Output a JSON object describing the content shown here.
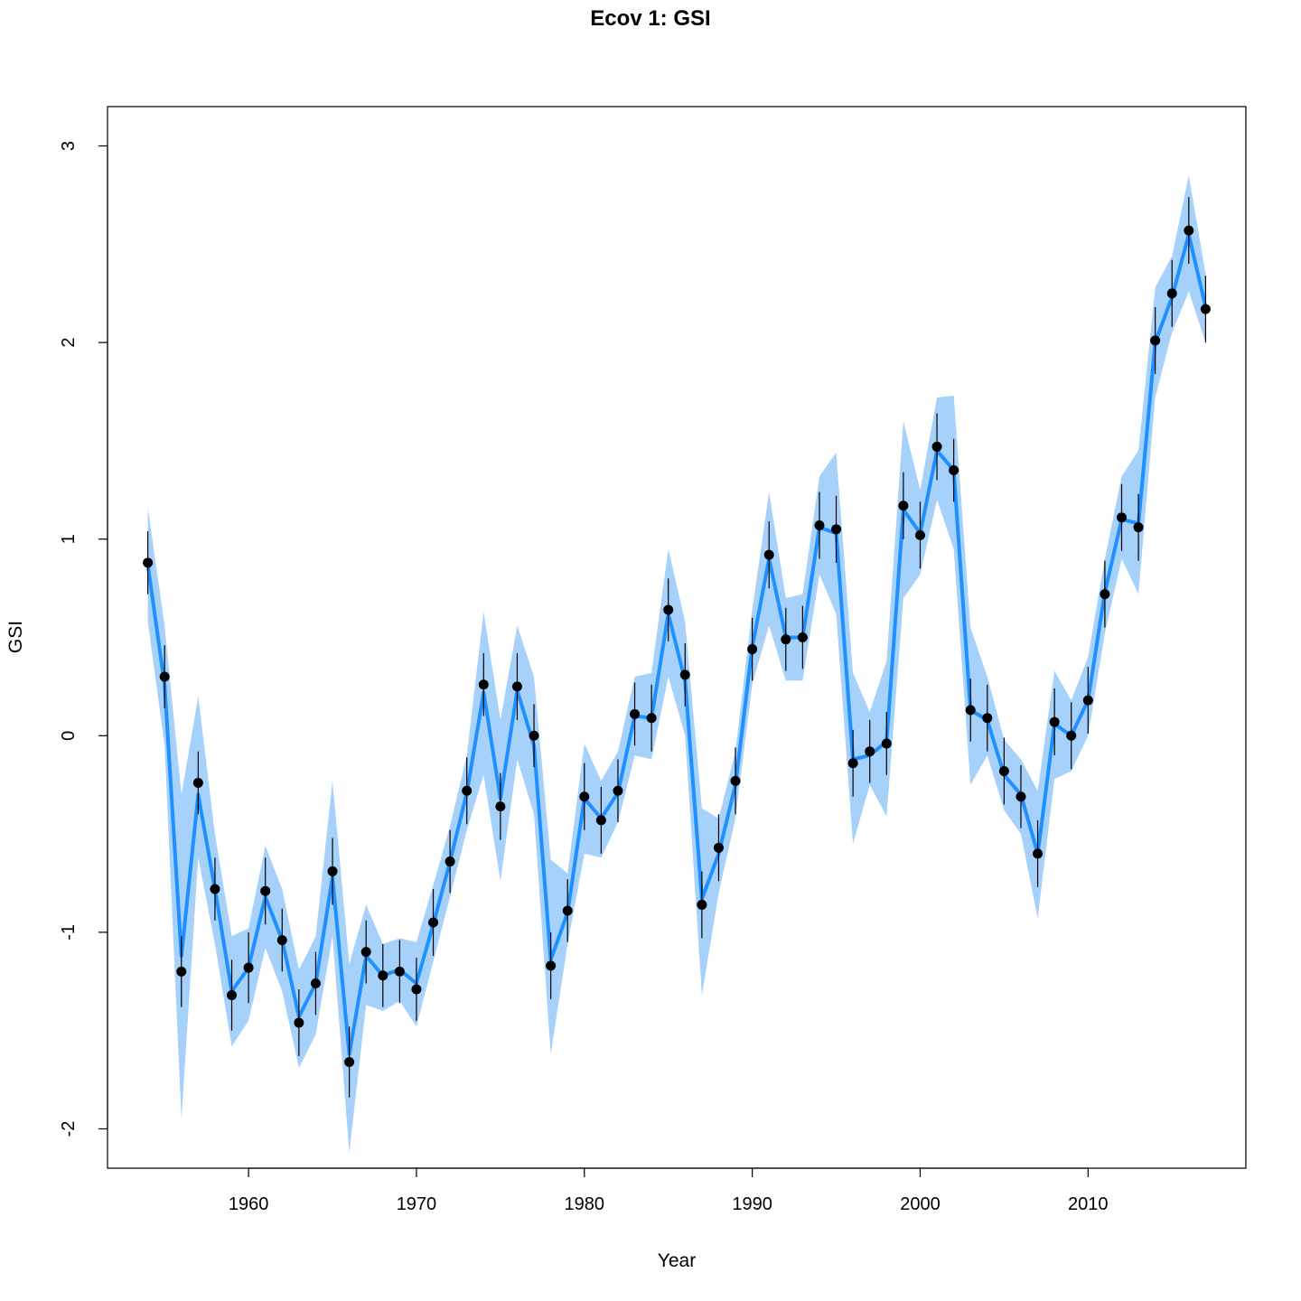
{
  "chart_data": {
    "type": "line",
    "title": "Ecov 1: GSI",
    "xlabel": "Year",
    "ylabel": "GSI",
    "xlim": [
      1951.6,
      2019.4
    ],
    "ylim": [
      -2.2,
      3.2
    ],
    "x_ticks": [
      1960,
      1970,
      1980,
      1990,
      2000,
      2010
    ],
    "x_tick_labels": [
      "1960",
      "1970",
      "1980",
      "1990",
      "2000",
      "2010"
    ],
    "y_ticks": [
      -2,
      -1,
      0,
      1,
      2,
      3
    ],
    "y_tick_labels": [
      "-2",
      "-1",
      "0",
      "1",
      "2",
      "3"
    ],
    "grid": false,
    "legend": "none",
    "colors": {
      "line": "#1E90FF",
      "band": "#A6D1FA",
      "points": "#000000",
      "error_bars": "#000000",
      "frame": "#000000"
    },
    "series": [
      {
        "type": "line",
        "x": [
          1954,
          1955,
          1956,
          1957,
          1958,
          1959,
          1960,
          1961,
          1962,
          1963,
          1964,
          1965,
          1966,
          1967,
          1968,
          1969,
          1970,
          1971,
          1972,
          1973,
          1974,
          1975,
          1976,
          1977,
          1978,
          1979,
          1980,
          1981,
          1982,
          1983,
          1984,
          1985,
          1986,
          1987,
          1988,
          1989,
          1990,
          1991,
          1992,
          1993,
          1994,
          1995,
          1996,
          1997,
          1998,
          1999,
          2000,
          2001,
          2002,
          2003,
          2004,
          2005,
          2006,
          2007,
          2008,
          2009,
          2010,
          2011,
          2012,
          2013,
          2014,
          2015,
          2016,
          2017
        ],
        "y": [
          0.87,
          0.26,
          -1.12,
          -0.3,
          -0.78,
          -1.3,
          -1.18,
          -0.82,
          -1.04,
          -1.43,
          -1.26,
          -0.72,
          -1.62,
          -1.12,
          -1.22,
          -1.19,
          -1.26,
          -0.96,
          -0.64,
          -0.29,
          0.22,
          -0.32,
          0.23,
          -0.05,
          -1.14,
          -0.9,
          -0.32,
          -0.42,
          -0.29,
          0.1,
          0.09,
          0.62,
          0.28,
          -0.83,
          -0.6,
          -0.25,
          0.45,
          0.9,
          0.5,
          0.5,
          1.06,
          1.03,
          -0.12,
          -0.1,
          -0.03,
          1.15,
          1.03,
          1.45,
          1.35,
          0.13,
          0.08,
          -0.2,
          -0.3,
          -0.6,
          0.06,
          0.0,
          0.18,
          0.73,
          1.1,
          1.08,
          2.0,
          2.23,
          2.55,
          2.18
        ],
        "lower": [
          0.58,
          -0.05,
          -1.95,
          -0.62,
          -1.06,
          -1.58,
          -1.45,
          -1.08,
          -1.3,
          -1.69,
          -1.52,
          -1.02,
          -2.12,
          -1.37,
          -1.4,
          -1.35,
          -1.48,
          -1.15,
          -0.82,
          -0.48,
          -0.2,
          -0.74,
          -0.12,
          -0.4,
          -1.62,
          -1.06,
          -0.6,
          -0.62,
          -0.44,
          -0.1,
          -0.12,
          0.3,
          0.0,
          -1.32,
          -0.8,
          -0.42,
          0.26,
          0.56,
          0.28,
          0.28,
          0.82,
          0.62,
          -0.55,
          -0.25,
          -0.41,
          0.7,
          0.82,
          1.2,
          0.95,
          -0.25,
          -0.1,
          -0.38,
          -0.5,
          -0.93,
          -0.22,
          -0.18,
          0.0,
          0.52,
          0.9,
          0.72,
          1.72,
          2.05,
          2.26,
          2.0
        ],
        "upper": [
          1.16,
          0.56,
          -0.3,
          0.2,
          -0.5,
          -1.02,
          -0.98,
          -0.56,
          -0.78,
          -1.19,
          -1.02,
          -0.23,
          -1.16,
          -0.86,
          -1.06,
          -1.03,
          -1.05,
          -0.76,
          -0.46,
          -0.1,
          0.63,
          0.08,
          0.56,
          0.3,
          -0.63,
          -0.7,
          -0.04,
          -0.23,
          -0.08,
          0.3,
          0.32,
          0.95,
          0.58,
          -0.37,
          -0.42,
          -0.08,
          0.64,
          1.24,
          0.7,
          0.72,
          1.32,
          1.44,
          0.32,
          0.12,
          0.38,
          1.6,
          1.25,
          1.72,
          1.73,
          0.55,
          0.3,
          -0.02,
          -0.12,
          -0.28,
          0.33,
          0.18,
          0.4,
          0.9,
          1.32,
          1.45,
          2.28,
          2.44,
          2.85,
          2.35
        ]
      },
      {
        "type": "scatter",
        "x": [
          1954,
          1955,
          1956,
          1957,
          1958,
          1959,
          1960,
          1961,
          1962,
          1963,
          1964,
          1965,
          1966,
          1967,
          1968,
          1969,
          1970,
          1971,
          1972,
          1973,
          1974,
          1975,
          1976,
          1977,
          1978,
          1979,
          1980,
          1981,
          1982,
          1983,
          1984,
          1985,
          1986,
          1987,
          1988,
          1989,
          1990,
          1991,
          1992,
          1993,
          1994,
          1995,
          1996,
          1997,
          1998,
          1999,
          2000,
          2001,
          2002,
          2003,
          2004,
          2005,
          2006,
          2007,
          2008,
          2009,
          2010,
          2011,
          2012,
          2013,
          2014,
          2015,
          2016,
          2017
        ],
        "y": [
          0.88,
          0.3,
          -1.2,
          -0.24,
          -0.78,
          -1.32,
          -1.18,
          -0.79,
          -1.04,
          -1.46,
          -1.26,
          -0.69,
          -1.66,
          -1.1,
          -1.22,
          -1.2,
          -1.29,
          -0.95,
          -0.64,
          -0.28,
          0.26,
          -0.36,
          0.25,
          0.0,
          -1.17,
          -0.89,
          -0.31,
          -0.43,
          -0.28,
          0.11,
          0.09,
          0.64,
          0.31,
          -0.86,
          -0.57,
          -0.23,
          0.44,
          0.92,
          0.49,
          0.5,
          1.07,
          1.05,
          -0.14,
          -0.08,
          -0.04,
          1.17,
          1.02,
          1.47,
          1.35,
          0.13,
          0.09,
          -0.18,
          -0.31,
          -0.6,
          0.07,
          0.0,
          0.18,
          0.72,
          1.11,
          1.06,
          2.01,
          2.25,
          2.57,
          2.17
        ],
        "err_low": [
          0.72,
          0.14,
          -1.38,
          -0.4,
          -0.94,
          -1.5,
          -1.36,
          -0.96,
          -1.2,
          -1.63,
          -1.42,
          -0.86,
          -1.84,
          -1.26,
          -1.38,
          -1.36,
          -1.45,
          -1.12,
          -0.8,
          -0.45,
          0.1,
          -0.53,
          0.08,
          -0.16,
          -1.34,
          -1.05,
          -0.48,
          -0.6,
          -0.44,
          -0.05,
          -0.08,
          0.48,
          0.15,
          -1.03,
          -0.74,
          -0.4,
          0.28,
          0.75,
          0.33,
          0.34,
          0.9,
          0.88,
          -0.31,
          -0.24,
          -0.2,
          1.0,
          0.85,
          1.3,
          1.19,
          -0.03,
          -0.08,
          -0.35,
          -0.47,
          -0.77,
          -0.1,
          -0.17,
          0.01,
          0.55,
          0.94,
          0.89,
          1.84,
          2.08,
          2.4,
          2.0
        ],
        "err_high": [
          1.04,
          0.46,
          -1.02,
          -0.08,
          -0.62,
          -1.14,
          -1.0,
          -0.62,
          -0.88,
          -1.29,
          -1.1,
          -0.52,
          -1.48,
          -0.94,
          -1.06,
          -1.04,
          -1.13,
          -0.78,
          -0.48,
          -0.11,
          0.42,
          -0.19,
          0.42,
          0.16,
          -1.0,
          -0.73,
          -0.14,
          -0.26,
          -0.12,
          0.27,
          0.26,
          0.8,
          0.47,
          -0.69,
          -0.4,
          -0.06,
          0.6,
          1.09,
          0.65,
          0.66,
          1.24,
          1.22,
          0.03,
          0.08,
          0.12,
          1.34,
          1.19,
          1.64,
          1.51,
          0.29,
          0.26,
          -0.01,
          -0.15,
          -0.43,
          0.24,
          0.17,
          0.35,
          0.89,
          1.28,
          1.23,
          2.18,
          2.42,
          2.74,
          2.34
        ]
      }
    ]
  }
}
